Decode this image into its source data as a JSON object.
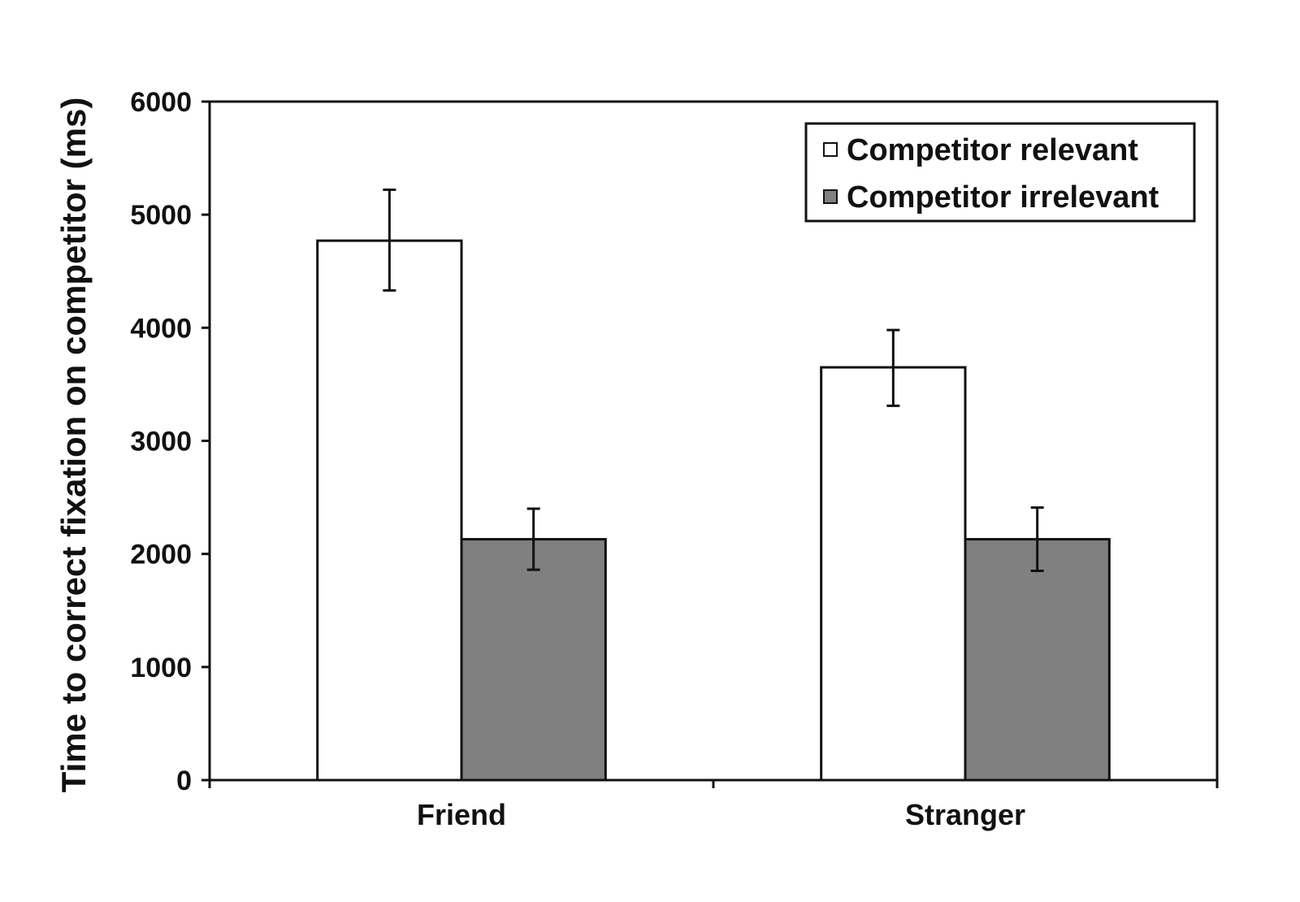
{
  "chart_data": {
    "type": "bar",
    "title": "",
    "xlabel": "",
    "ylabel": "Time to correct fixation on competitor (ms)",
    "ylim": [
      0,
      6000
    ],
    "yticks": [
      0,
      1000,
      2000,
      3000,
      4000,
      5000,
      6000
    ],
    "categories": [
      "Friend",
      "Stranger"
    ],
    "series": [
      {
        "name": "Competitor relevant",
        "color": "#ffffff",
        "values": [
          4770,
          3650
        ],
        "error": [
          [
            4330,
            5220
          ],
          [
            3310,
            3980
          ]
        ]
      },
      {
        "name": "Competitor irrelevant",
        "color": "#808080",
        "values": [
          2130,
          2130
        ],
        "error": [
          [
            1860,
            2400
          ],
          [
            1850,
            2410
          ]
        ]
      }
    ],
    "legend_position": "top-right",
    "grid": false
  }
}
